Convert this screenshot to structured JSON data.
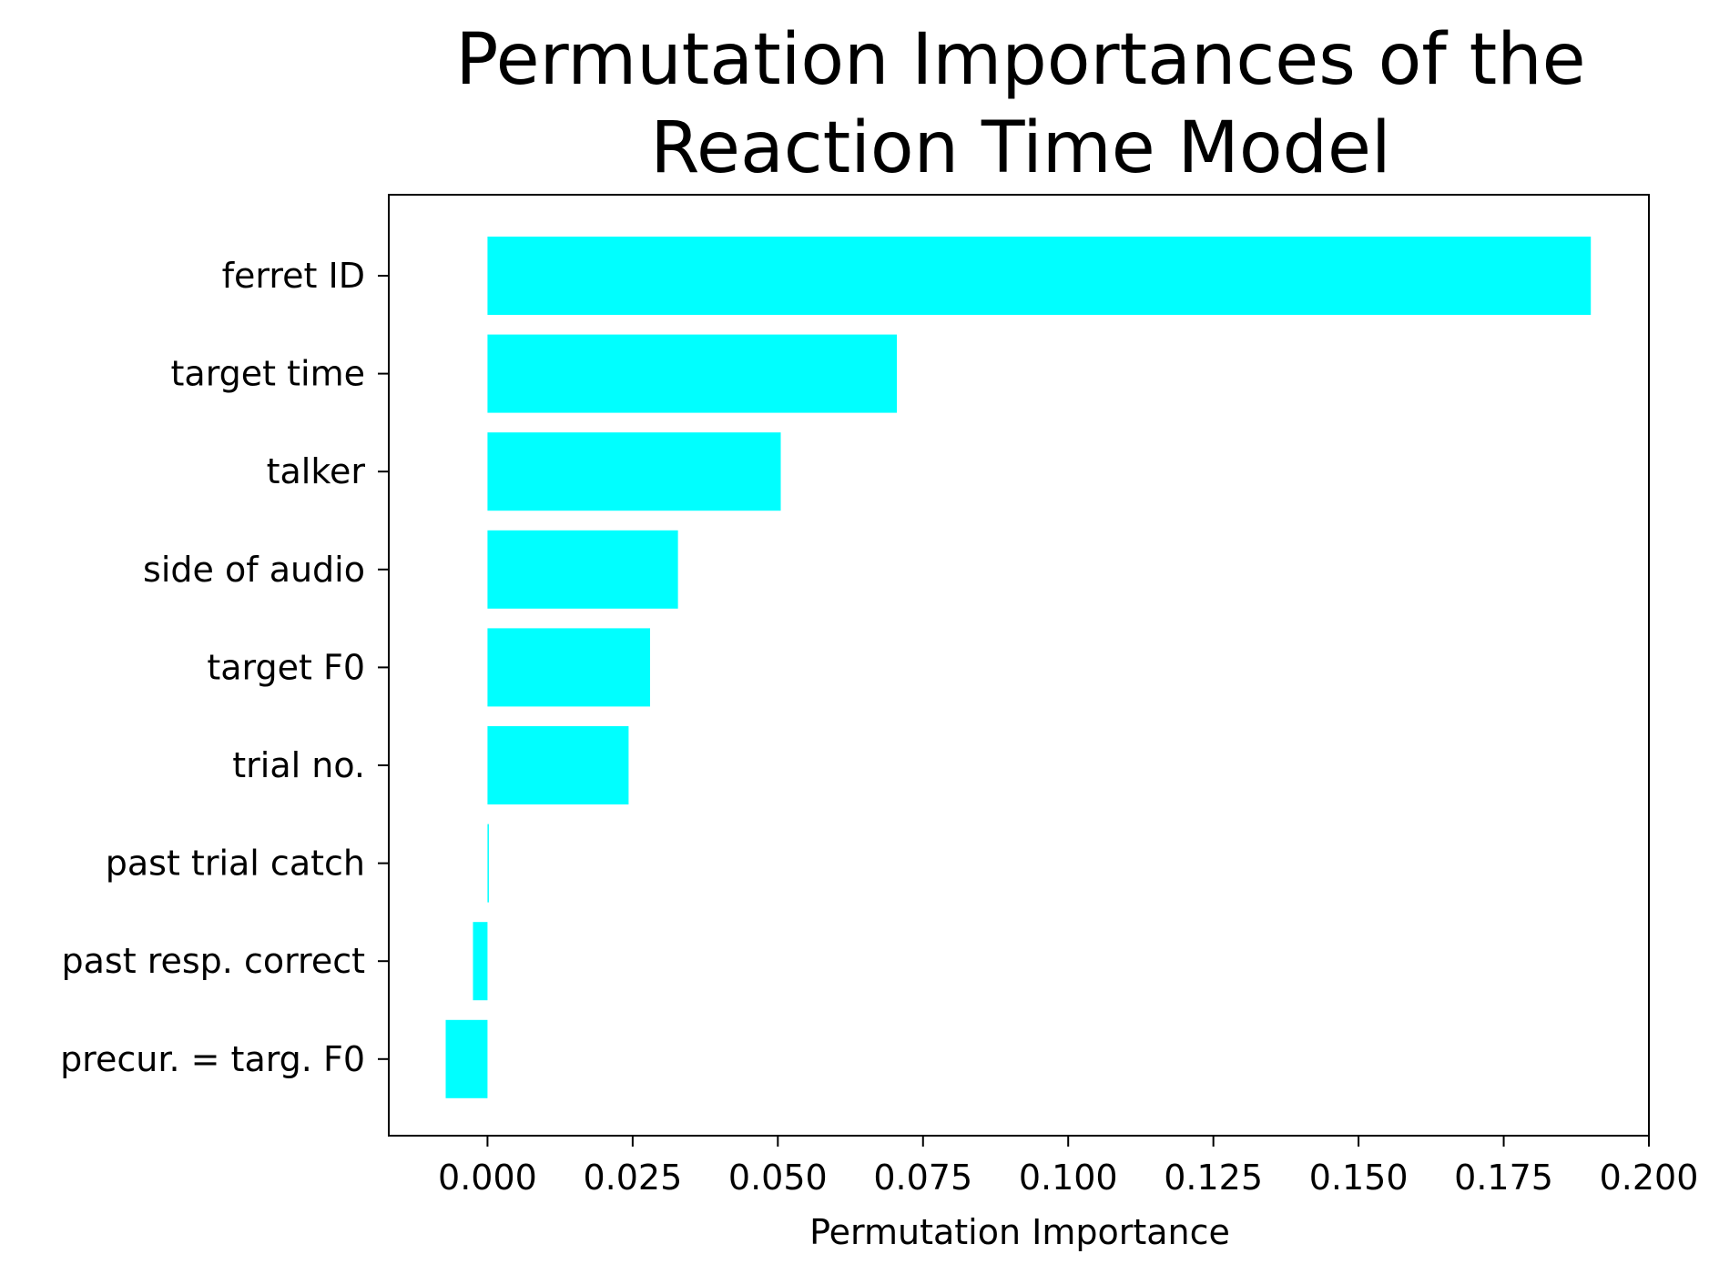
{
  "chart_data": {
    "type": "bar",
    "orientation": "horizontal",
    "title_lines": [
      "Permutation Importances of the",
      "Reaction Time Model"
    ],
    "xlabel": "Permutation Importance",
    "ylabel": "",
    "categories": [
      "ferret ID",
      "target time",
      "talker",
      "side of audio",
      "target F0",
      "trial no.",
      "past trial catch",
      "past resp. correct",
      "precur. = targ. F0"
    ],
    "values": [
      0.19,
      0.0705,
      0.0505,
      0.0328,
      0.028,
      0.0243,
      0.0002,
      -0.0025,
      -0.0072
    ],
    "xlim": [
      -0.017,
      0.2
    ],
    "xticks": [
      0.0,
      0.025,
      0.05,
      0.075,
      0.1,
      0.125,
      0.15,
      0.175,
      0.2
    ],
    "xtick_labels": [
      "0.000",
      "0.025",
      "0.050",
      "0.075",
      "0.100",
      "0.125",
      "0.150",
      "0.175",
      "0.200"
    ],
    "bar_color": "#00ffff",
    "grid": false,
    "legend": "none"
  }
}
